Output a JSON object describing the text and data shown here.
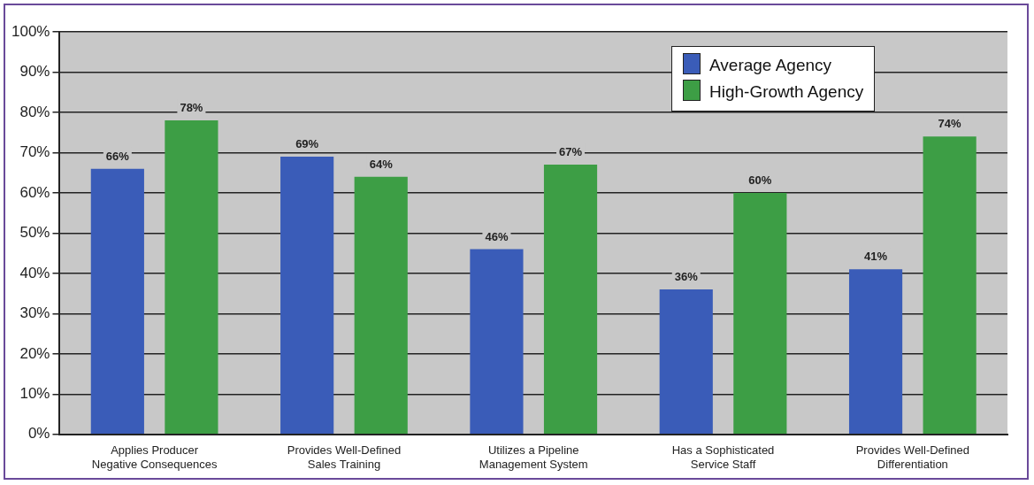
{
  "chart_data": {
    "type": "bar",
    "categories": [
      "Applies Producer Negative Consequences",
      "Provides Well-Defined Sales Training",
      "Utilizes a Pipeline Management System",
      "Has a Sophisticated Service Staff",
      "Provides Well-Defined Differentiation"
    ],
    "series": [
      {
        "name": "Average Agency",
        "color": "#3a5cb8",
        "values": [
          66,
          69,
          46,
          36,
          41
        ],
        "value_labels": [
          "66%",
          "69%",
          "46%",
          "36%",
          "41%"
        ]
      },
      {
        "name": "High-Growth Agency",
        "color": "#3d9e45",
        "values": [
          78,
          64,
          67,
          60,
          74
        ],
        "value_labels": [
          "78%",
          "64%",
          "67%",
          "60%",
          "74%"
        ]
      }
    ],
    "ylim": [
      0,
      100
    ],
    "yticks": [
      {
        "value": 0,
        "label": "0%"
      },
      {
        "value": 10,
        "label": "10%"
      },
      {
        "value": 20,
        "label": "20%"
      },
      {
        "value": 30,
        "label": "30%"
      },
      {
        "value": 40,
        "label": "40%"
      },
      {
        "value": 50,
        "label": "50%"
      },
      {
        "value": 60,
        "label": "60%"
      },
      {
        "value": 70,
        "label": "70%"
      },
      {
        "value": 80,
        "label": "80%"
      },
      {
        "value": 90,
        "label": "90%"
      },
      {
        "value": 100,
        "label": "100%"
      }
    ],
    "grid": "y",
    "legend": "top right"
  }
}
